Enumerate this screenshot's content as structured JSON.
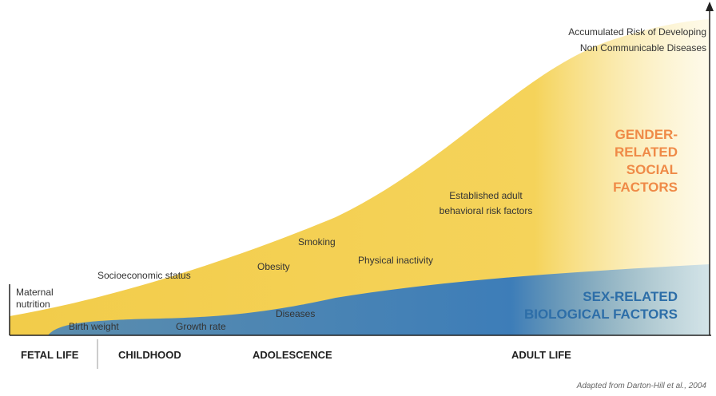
{
  "axis_label": {
    "lines": [
      "Accumulated Risk of Developing",
      "Non Communicable Diseases"
    ]
  },
  "gender_factors": {
    "lines": [
      "GENDER-",
      "RELATED",
      "SOCIAL",
      "FACTORS"
    ]
  },
  "sex_factors": {
    "lines": [
      "SEX-RELATED",
      "BIOLOGICAL FACTORS"
    ]
  },
  "labels": {
    "maternal": [
      "Maternal",
      "nutrition"
    ],
    "socioeconomic": "Socioeconomic status",
    "birth_weight": "Birth weight",
    "growth_rate": "Growth rate",
    "obesity": "Obesity",
    "smoking": "Smoking",
    "diseases": "Diseases",
    "physical": "Physical inactivity",
    "established": [
      "Established adult",
      "behavioral risk factors"
    ]
  },
  "stages": [
    "FETAL LIFE",
    "CHILDHOOD",
    "ADOLESCENCE",
    "ADULT LIFE"
  ],
  "source": "Adapted from Darton-Hill et al., 2004"
}
